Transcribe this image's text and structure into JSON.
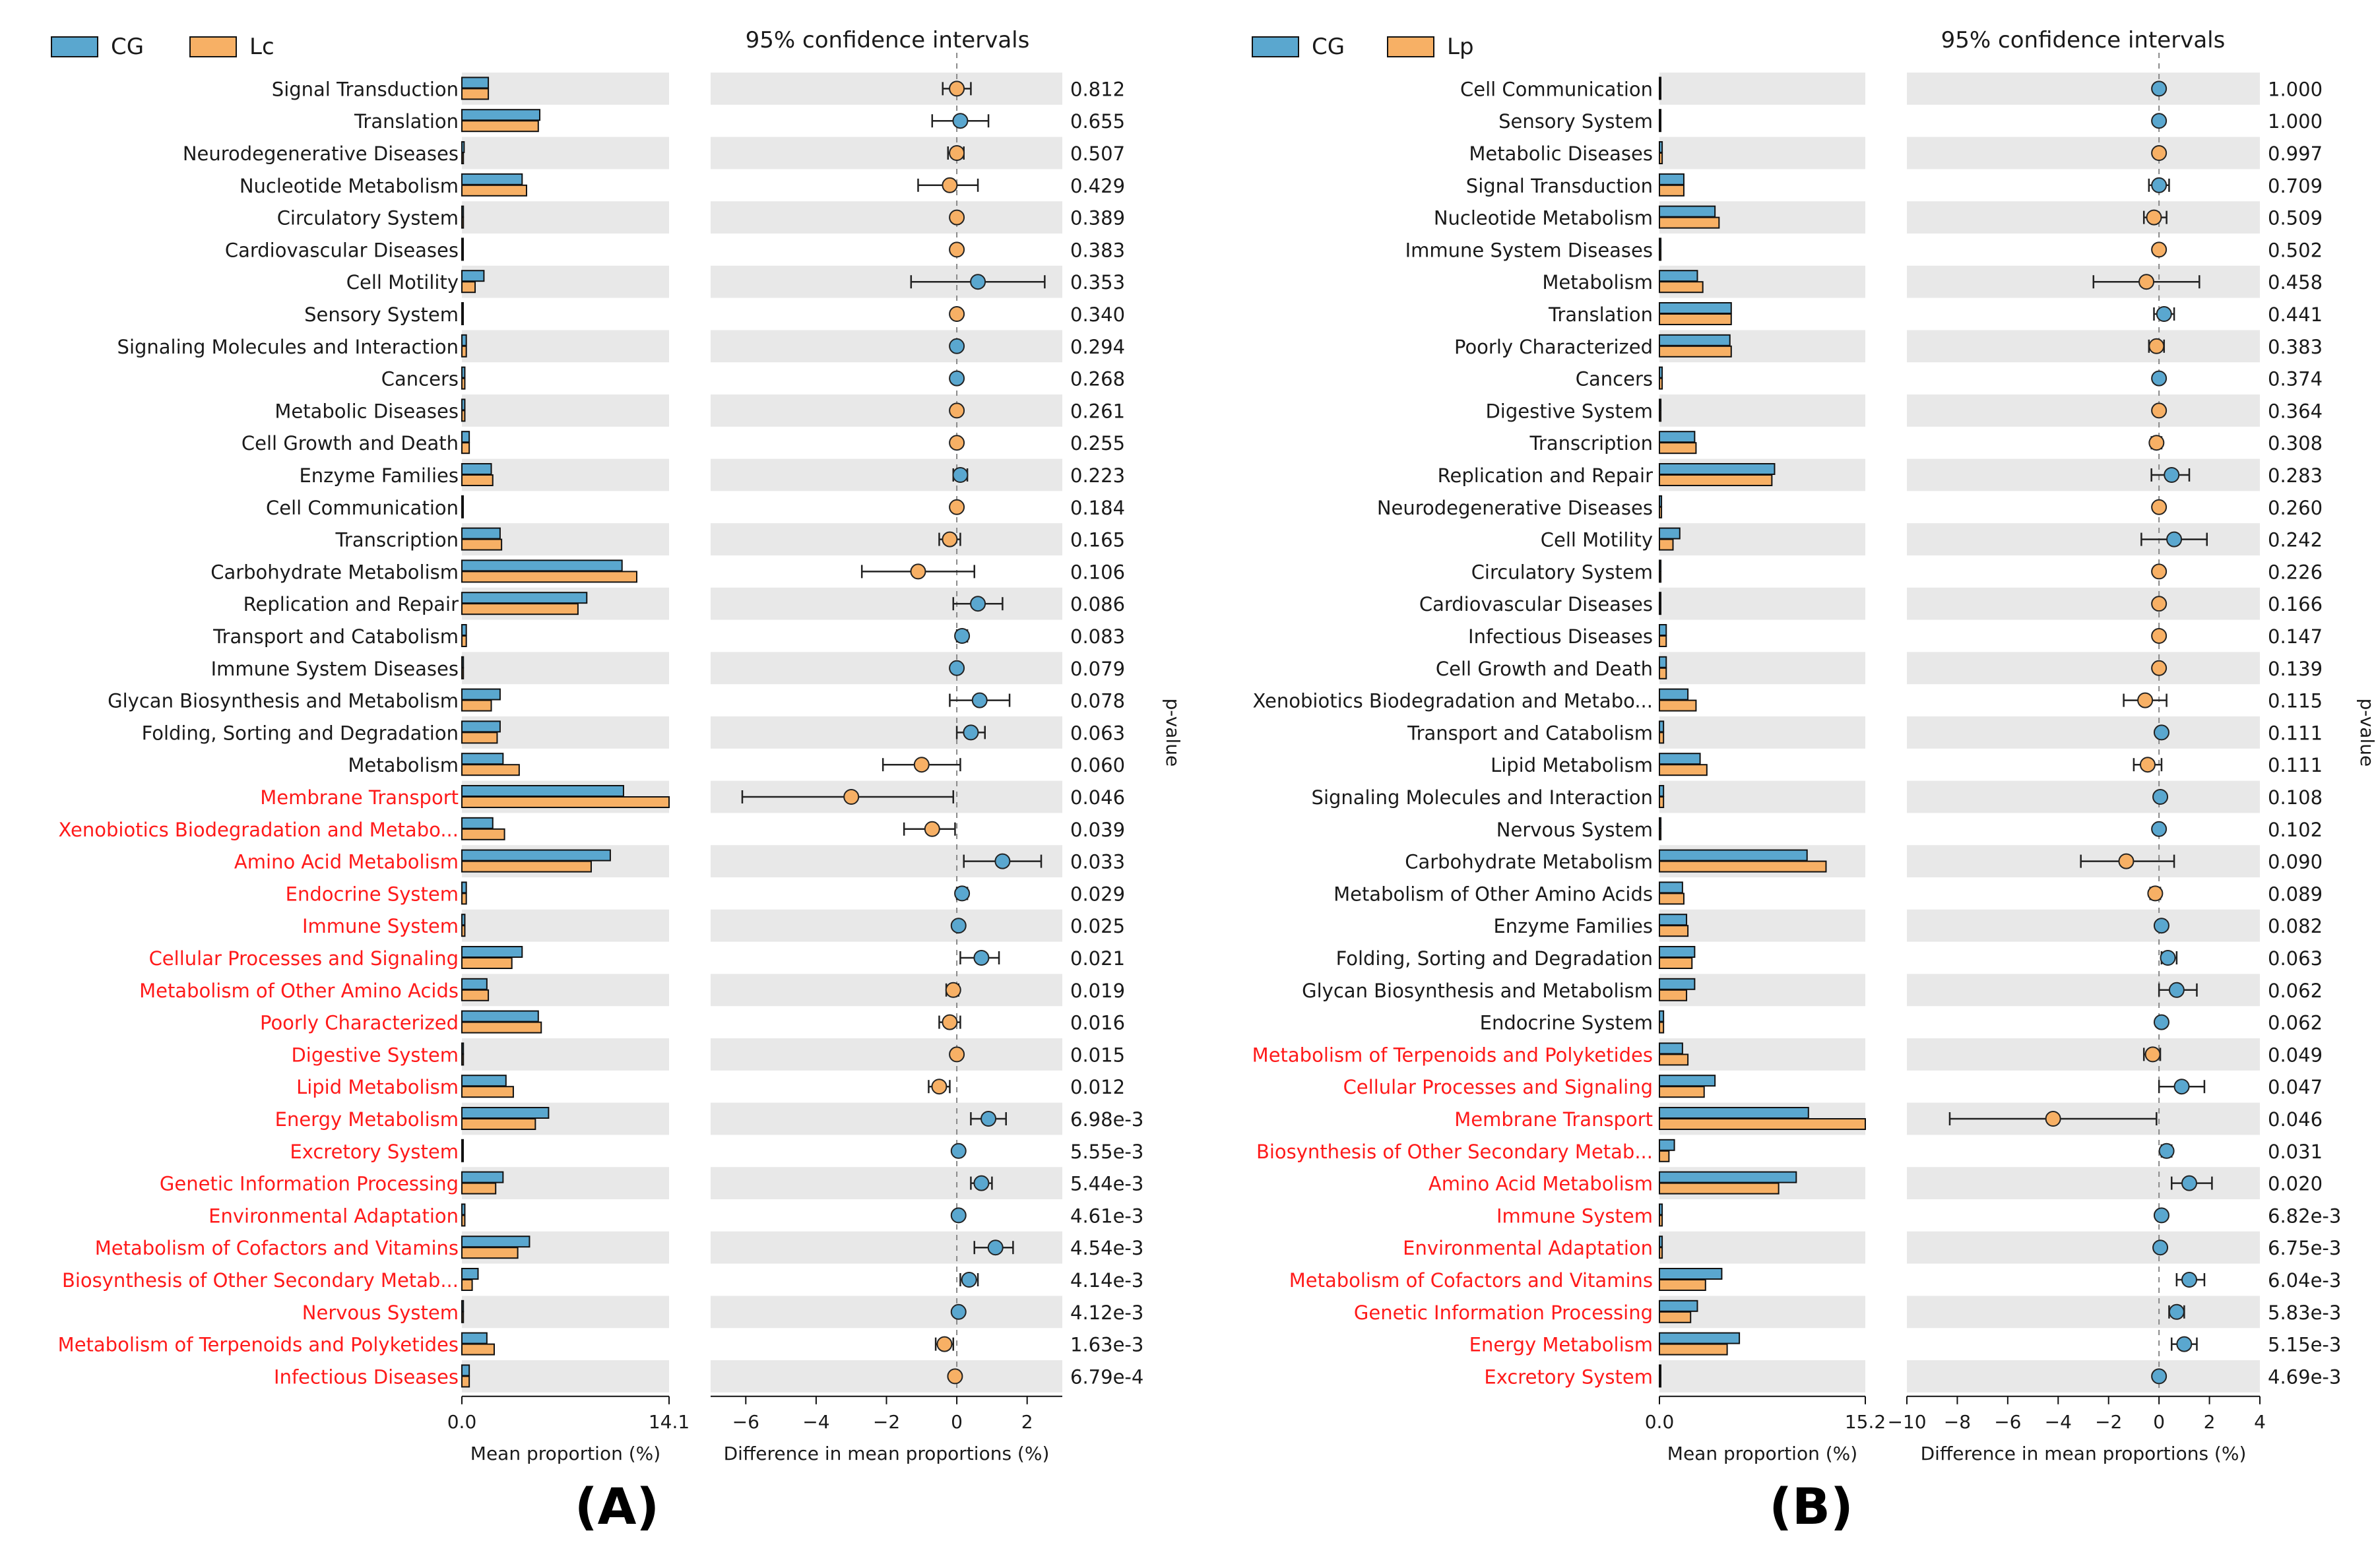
{
  "colors": {
    "cg": "#5aa7cf",
    "treat": "#f7b065",
    "band": "#e8e8e8",
    "sig": "#ff1a1a",
    "text": "#1a1a1a"
  },
  "figure": {
    "panel_a_letter": "(A)",
    "panel_b_letter": "(B)"
  },
  "chart_data": [
    {
      "type": "bar",
      "panel": "A",
      "legend": [
        "CG",
        "Lc"
      ],
      "ci_title": "95% confidence intervals",
      "bar_xlabel": "Mean proportion (%)",
      "diff_xlabel": "Difference in mean proportions (%)",
      "pvalue_label": "p-value",
      "bar_xlim": [
        0.0,
        14.1
      ],
      "bar_tick_labels": [
        "0.0",
        "14.1"
      ],
      "diff_xlim": [
        -7.0,
        3.0
      ],
      "diff_ticks": [
        -6,
        -4,
        -2,
        0,
        2
      ],
      "diff_tick_labels": [
        "−6",
        "−4",
        "−2",
        "0",
        "2"
      ],
      "categories": [
        "Signal Transduction",
        "Translation",
        "Neurodegenerative Diseases",
        "Nucleotide Metabolism",
        "Circulatory System",
        "Cardiovascular Diseases",
        "Cell Motility",
        "Sensory System",
        "Signaling Molecules and Interaction",
        "Cancers",
        "Metabolic Diseases",
        "Cell Growth and Death",
        "Enzyme Families",
        "Cell Communication",
        "Transcription",
        "Carbohydrate Metabolism",
        "Replication and Repair",
        "Transport and Catabolism",
        "Immune System Diseases",
        "Glycan Biosynthesis and Metabolism",
        "Folding, Sorting and Degradation",
        "Metabolism",
        "Membrane Transport",
        "Xenobiotics Biodegradation and Metabo...",
        "Amino Acid Metabolism",
        "Endocrine System",
        "Immune System",
        "Cellular Processes and Signaling",
        "Metabolism of Other Amino Acids",
        "Poorly Characterized",
        "Digestive System",
        "Lipid Metabolism",
        "Energy Metabolism",
        "Excretory System",
        "Genetic Information Processing",
        "Environmental Adaptation",
        "Metabolism of Cofactors and Vitamins",
        "Biosynthesis of Other Secondary Metab...",
        "Nervous System",
        "Metabolism of Terpenoids and Polyketides",
        "Infectious Diseases"
      ],
      "series": [
        {
          "name": "CG",
          "values": [
            1.8,
            5.3,
            0.15,
            4.1,
            0.1,
            0.08,
            1.5,
            0.05,
            0.3,
            0.2,
            0.2,
            0.5,
            2.0,
            0.05,
            2.6,
            10.9,
            8.5,
            0.3,
            0.1,
            2.6,
            2.6,
            2.8,
            11.0,
            2.1,
            10.1,
            0.3,
            0.2,
            4.1,
            1.7,
            5.2,
            0.1,
            3.0,
            5.9,
            0.05,
            2.8,
            0.2,
            4.6,
            1.1,
            0.1,
            1.7,
            0.5
          ]
        },
        {
          "name": "Lc",
          "values": [
            1.8,
            5.2,
            0.1,
            4.4,
            0.1,
            0.08,
            0.9,
            0.05,
            0.3,
            0.2,
            0.2,
            0.5,
            2.1,
            0.05,
            2.7,
            11.9,
            7.9,
            0.3,
            0.1,
            2.0,
            2.4,
            3.9,
            14.1,
            2.9,
            8.8,
            0.3,
            0.2,
            3.4,
            1.8,
            5.4,
            0.1,
            3.5,
            5.0,
            0.05,
            2.3,
            0.2,
            3.8,
            0.7,
            0.1,
            2.2,
            0.5
          ]
        }
      ],
      "diff": [
        0.0,
        0.1,
        0.0,
        -0.2,
        0.0,
        0.0,
        0.6,
        0.0,
        0.0,
        0.0,
        0.0,
        0.0,
        0.1,
        0.0,
        -0.2,
        -1.1,
        0.6,
        0.15,
        0.0,
        0.65,
        0.4,
        -1.0,
        -3.0,
        -0.7,
        1.3,
        0.15,
        0.05,
        0.7,
        -0.1,
        -0.2,
        0.0,
        -0.5,
        0.9,
        0.05,
        0.7,
        0.05,
        1.1,
        0.35,
        0.05,
        -0.35,
        -0.05
      ],
      "ci_low": [
        -0.4,
        -0.7,
        -0.25,
        -1.1,
        -0.05,
        -0.05,
        -1.3,
        -0.03,
        -0.05,
        -0.05,
        -0.05,
        -0.1,
        -0.1,
        -0.03,
        -0.5,
        -2.7,
        -0.1,
        0.0,
        -0.03,
        -0.2,
        0.0,
        -2.1,
        -6.1,
        -1.5,
        0.2,
        0.0,
        0.0,
        0.1,
        -0.3,
        -0.5,
        -0.03,
        -0.8,
        0.4,
        0.0,
        0.4,
        0.0,
        0.5,
        0.1,
        0.0,
        -0.6,
        -0.15
      ],
      "ci_high": [
        0.4,
        0.9,
        0.2,
        0.6,
        0.05,
        0.05,
        2.5,
        0.03,
        0.05,
        0.05,
        0.05,
        0.1,
        0.3,
        0.03,
        0.1,
        0.5,
        1.3,
        0.3,
        0.03,
        1.5,
        0.8,
        0.1,
        -0.1,
        -0.05,
        2.4,
        0.3,
        0.1,
        1.2,
        0.05,
        0.1,
        0.03,
        -0.2,
        1.4,
        0.1,
        1.0,
        0.1,
        1.6,
        0.6,
        0.1,
        -0.1,
        0.05
      ],
      "point_color": [
        "Lc",
        "CG",
        "Lc",
        "Lc",
        "Lc",
        "Lc",
        "CG",
        "Lc",
        "CG",
        "CG",
        "Lc",
        "Lc",
        "CG",
        "Lc",
        "Lc",
        "Lc",
        "CG",
        "CG",
        "CG",
        "CG",
        "CG",
        "Lc",
        "Lc",
        "Lc",
        "CG",
        "CG",
        "CG",
        "CG",
        "Lc",
        "Lc",
        "Lc",
        "Lc",
        "CG",
        "CG",
        "CG",
        "CG",
        "CG",
        "CG",
        "CG",
        "Lc",
        "Lc"
      ],
      "pvalues": [
        "0.812",
        "0.655",
        "0.507",
        "0.429",
        "0.389",
        "0.383",
        "0.353",
        "0.340",
        "0.294",
        "0.268",
        "0.261",
        "0.255",
        "0.223",
        "0.184",
        "0.165",
        "0.106",
        "0.086",
        "0.083",
        "0.079",
        "0.078",
        "0.063",
        "0.060",
        "0.046",
        "0.039",
        "0.033",
        "0.029",
        "0.025",
        "0.021",
        "0.019",
        "0.016",
        "0.015",
        "0.012",
        "6.98e-3",
        "5.55e-3",
        "5.44e-3",
        "4.61e-3",
        "4.54e-3",
        "4.14e-3",
        "4.12e-3",
        "1.63e-3",
        "6.79e-4"
      ],
      "significant": [
        false,
        false,
        false,
        false,
        false,
        false,
        false,
        false,
        false,
        false,
        false,
        false,
        false,
        false,
        false,
        false,
        false,
        false,
        false,
        false,
        false,
        false,
        true,
        true,
        true,
        true,
        true,
        true,
        true,
        true,
        true,
        true,
        true,
        true,
        true,
        true,
        true,
        true,
        true,
        true,
        true
      ]
    },
    {
      "type": "bar",
      "panel": "B",
      "legend": [
        "CG",
        "Lp"
      ],
      "ci_title": "95% confidence intervals",
      "bar_xlabel": "Mean proportion (%)",
      "diff_xlabel": "Difference in mean proportions (%)",
      "pvalue_label": "p-value",
      "bar_xlim": [
        0.0,
        15.2
      ],
      "bar_tick_labels": [
        "0.0",
        "15.2"
      ],
      "diff_xlim": [
        -10.0,
        4.0
      ],
      "diff_ticks": [
        -10,
        -8,
        -6,
        -4,
        -2,
        0,
        2,
        4
      ],
      "diff_tick_labels": [
        "−10",
        "−8",
        "−6",
        "−4",
        "−2",
        "0",
        "2",
        "4"
      ],
      "categories": [
        "Cell Communication",
        "Sensory System",
        "Metabolic Diseases",
        "Signal Transduction",
        "Nucleotide Metabolism",
        "Immune System Diseases",
        "Metabolism",
        "Translation",
        "Poorly Characterized",
        "Cancers",
        "Digestive System",
        "Transcription",
        "Replication and Repair",
        "Neurodegenerative Diseases",
        "Cell Motility",
        "Circulatory System",
        "Cardiovascular Diseases",
        "Infectious Diseases",
        "Cell Growth and Death",
        "Xenobiotics Biodegradation and Metabo...",
        "Transport and Catabolism",
        "Lipid Metabolism",
        "Signaling Molecules and Interaction",
        "Nervous System",
        "Carbohydrate Metabolism",
        "Metabolism of Other Amino Acids",
        "Enzyme Families",
        "Folding, Sorting and Degradation",
        "Glycan Biosynthesis and Metabolism",
        "Endocrine System",
        "Metabolism of Terpenoids and Polyketides",
        "Cellular Processes and Signaling",
        "Membrane Transport",
        "Biosynthesis of Other Secondary Metab...",
        "Amino Acid Metabolism",
        "Immune System",
        "Environmental Adaptation",
        "Metabolism of Cofactors and Vitamins",
        "Genetic Information Processing",
        "Energy Metabolism",
        "Excretory System"
      ],
      "series": [
        {
          "name": "CG",
          "values": [
            0.05,
            0.05,
            0.2,
            1.8,
            4.1,
            0.1,
            2.8,
            5.3,
            5.2,
            0.2,
            0.1,
            2.6,
            8.5,
            0.15,
            1.5,
            0.1,
            0.08,
            0.5,
            0.5,
            2.1,
            0.3,
            3.0,
            0.3,
            0.1,
            10.9,
            1.7,
            2.0,
            2.6,
            2.6,
            0.3,
            1.7,
            4.1,
            11.0,
            1.1,
            10.1,
            0.2,
            0.2,
            4.6,
            2.8,
            5.9,
            0.05
          ]
        },
        {
          "name": "Lp",
          "values": [
            0.05,
            0.05,
            0.2,
            1.8,
            4.4,
            0.1,
            3.2,
            5.3,
            5.3,
            0.2,
            0.1,
            2.7,
            8.3,
            0.15,
            1.0,
            0.1,
            0.08,
            0.5,
            0.5,
            2.7,
            0.3,
            3.5,
            0.3,
            0.1,
            12.3,
            1.8,
            2.1,
            2.4,
            2.0,
            0.3,
            2.1,
            3.3,
            15.2,
            0.7,
            8.8,
            0.2,
            0.2,
            3.4,
            2.3,
            5.0,
            0.05
          ]
        }
      ],
      "diff": [
        0.0,
        0.0,
        0.0,
        0.0,
        -0.2,
        0.0,
        -0.5,
        0.2,
        -0.1,
        0.0,
        0.0,
        -0.1,
        0.5,
        0.0,
        0.6,
        0.0,
        0.0,
        0.0,
        0.0,
        -0.55,
        0.1,
        -0.45,
        0.05,
        0.0,
        -1.3,
        -0.15,
        0.1,
        0.35,
        0.7,
        0.1,
        -0.25,
        0.9,
        -4.2,
        0.3,
        1.2,
        0.1,
        0.05,
        1.2,
        0.7,
        1.0,
        0.0
      ],
      "ci_low": [
        -0.03,
        -0.03,
        -0.05,
        -0.4,
        -0.6,
        -0.05,
        -2.6,
        -0.2,
        -0.4,
        -0.03,
        -0.05,
        -0.3,
        -0.3,
        -0.05,
        -0.7,
        -0.03,
        -0.03,
        -0.1,
        -0.15,
        -1.4,
        -0.05,
        -1.0,
        -0.05,
        -0.03,
        -3.1,
        -0.35,
        -0.05,
        0.1,
        0.0,
        0.0,
        -0.6,
        0.0,
        -8.3,
        0.1,
        0.5,
        0.0,
        0.0,
        0.7,
        0.4,
        0.5,
        -0.03
      ],
      "ci_high": [
        0.03,
        0.03,
        0.05,
        0.4,
        0.3,
        0.05,
        1.6,
        0.6,
        0.2,
        0.03,
        0.05,
        0.1,
        1.2,
        0.05,
        1.9,
        0.03,
        0.03,
        0.1,
        0.15,
        0.3,
        0.25,
        0.1,
        0.15,
        0.03,
        0.6,
        0.05,
        0.25,
        0.7,
        1.5,
        0.2,
        0.05,
        1.8,
        -0.1,
        0.5,
        2.1,
        0.2,
        0.1,
        1.8,
        1.0,
        1.5,
        0.03
      ],
      "point_color": [
        "CG",
        "CG",
        "Lp",
        "CG",
        "Lp",
        "Lp",
        "Lp",
        "CG",
        "Lp",
        "CG",
        "Lp",
        "Lp",
        "CG",
        "Lp",
        "CG",
        "Lp",
        "Lp",
        "Lp",
        "Lp",
        "Lp",
        "CG",
        "Lp",
        "CG",
        "CG",
        "Lp",
        "Lp",
        "CG",
        "CG",
        "CG",
        "CG",
        "Lp",
        "CG",
        "Lp",
        "CG",
        "CG",
        "CG",
        "CG",
        "CG",
        "CG",
        "CG",
        "CG"
      ],
      "pvalues": [
        "1.000",
        "1.000",
        "0.997",
        "0.709",
        "0.509",
        "0.502",
        "0.458",
        "0.441",
        "0.383",
        "0.374",
        "0.364",
        "0.308",
        "0.283",
        "0.260",
        "0.242",
        "0.226",
        "0.166",
        "0.147",
        "0.139",
        "0.115",
        "0.111",
        "0.111",
        "0.108",
        "0.102",
        "0.090",
        "0.089",
        "0.082",
        "0.063",
        "0.062",
        "0.062",
        "0.049",
        "0.047",
        "0.046",
        "0.031",
        "0.020",
        "6.82e-3",
        "6.75e-3",
        "6.04e-3",
        "5.83e-3",
        "5.15e-3",
        "4.69e-3"
      ],
      "significant": [
        false,
        false,
        false,
        false,
        false,
        false,
        false,
        false,
        false,
        false,
        false,
        false,
        false,
        false,
        false,
        false,
        false,
        false,
        false,
        false,
        false,
        false,
        false,
        false,
        false,
        false,
        false,
        false,
        false,
        false,
        true,
        true,
        true,
        true,
        true,
        true,
        true,
        true,
        true,
        true,
        true
      ]
    }
  ]
}
